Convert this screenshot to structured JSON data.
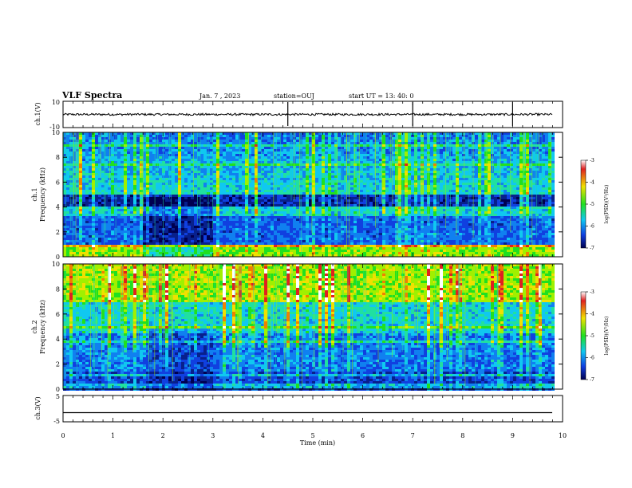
{
  "header": {
    "title": "VLF Spectra",
    "date": "Jan. 7 , 2023",
    "station": "station=OUJ",
    "start": "start UT =  13: 40: 0"
  },
  "colorbar": {
    "label": "log(PSD)(V²/Hz)",
    "stops": [
      "#f5f5f5",
      "#d01010",
      "#f0f000",
      "#20e020",
      "#10c0f0",
      "#1040e0",
      "#000060"
    ]
  },
  "chart_data": [
    {
      "type": "line",
      "name": "ch1-waveform",
      "ylabel": "ch.1(V)",
      "ylim": [
        -10,
        10
      ],
      "yticks": [
        "10",
        "-10"
      ],
      "xlim": [
        0,
        10
      ],
      "baseline": 0,
      "spikes_min": [
        4.5,
        7.0,
        9.0
      ]
    },
    {
      "type": "heatmap",
      "name": "ch1-spectrogram",
      "ylabel": "ch.1 Frequency (kHz)",
      "ylim": [
        0,
        10
      ],
      "yticks": [
        "0",
        "2",
        "4",
        "6",
        "8",
        "10"
      ],
      "xlim": [
        0,
        10
      ],
      "colorbar_ticks": [
        "-3",
        "-4",
        "-5",
        "-6",
        "-7"
      ],
      "z_range": [
        -7,
        -3
      ]
    },
    {
      "type": "heatmap",
      "name": "ch2-spectrogram",
      "ylabel": "ch.2 Frequency (kHz)",
      "ylim": [
        0,
        10
      ],
      "yticks": [
        "0",
        "2",
        "4",
        "6",
        "8",
        "10"
      ],
      "xlim": [
        0,
        10
      ],
      "colorbar_ticks": [
        "-3",
        "-4",
        "-5",
        "-6",
        "-7"
      ],
      "z_range": [
        -7,
        -3
      ]
    },
    {
      "type": "line",
      "name": "ch3-waveform",
      "ylabel": "ch.3(V)",
      "ylim": [
        -5,
        5
      ],
      "yticks": [
        "5",
        "0",
        "-5"
      ],
      "xlim": [
        0,
        10
      ],
      "baseline": -1.5
    }
  ],
  "xaxis": {
    "label": "Time (min)",
    "ticks": [
      "0",
      "1",
      "2",
      "3",
      "4",
      "5",
      "6",
      "7",
      "8",
      "9",
      "10"
    ]
  }
}
